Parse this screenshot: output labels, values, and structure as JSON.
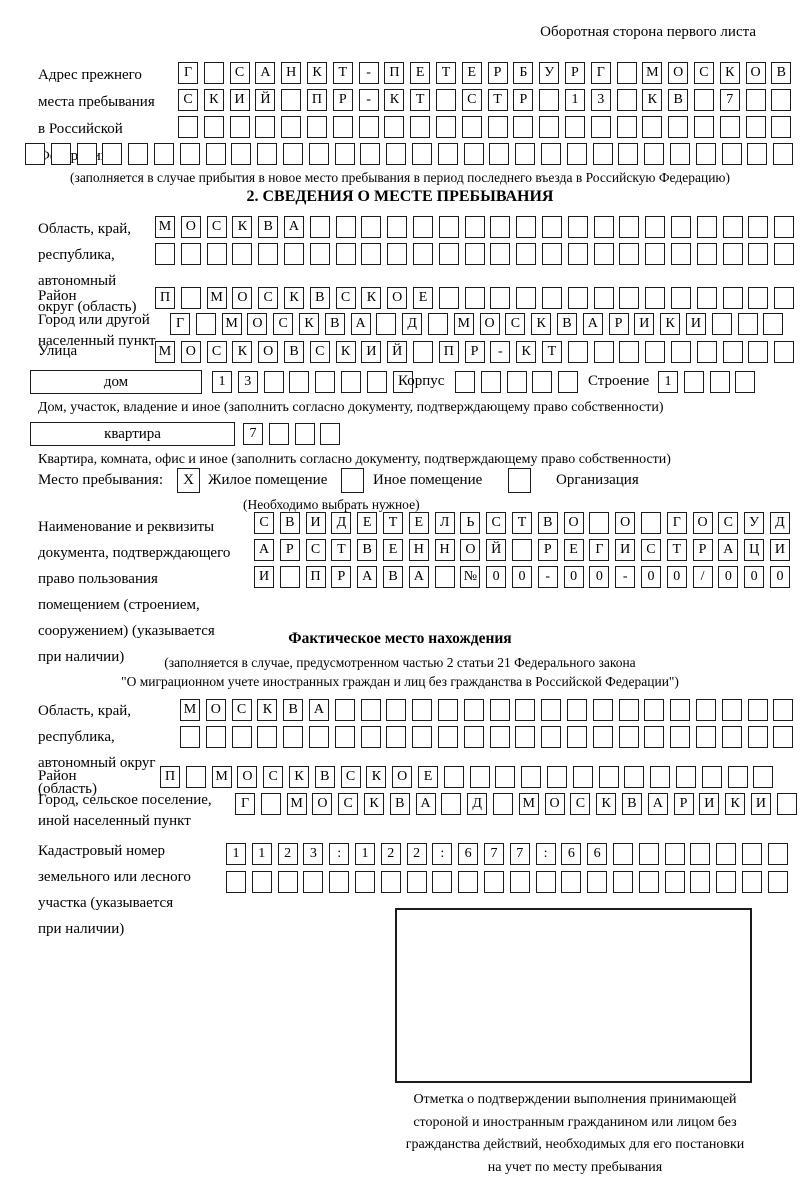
{
  "corner_note": "Оборотная сторона первого листа",
  "prev_address": {
    "label": [
      "Адрес прежнего",
      "места пребывания",
      "в Российской",
      "Федерации"
    ],
    "row1": {
      "cells": "Г САНКТ-ПЕТЕРБУРГ МОСКОВ",
      "len": 24
    },
    "row2": {
      "cells": "СКИЙ ПР-КТ СТР 13 КВ 7",
      "len": 24
    },
    "row3": {
      "cells": "",
      "len": 24
    },
    "row4": {
      "cells": "",
      "len": 30
    },
    "note": "(заполняется в случае прибытия в новое место пребывания в период последнего въезда в Российскую Федерацию)"
  },
  "section2": {
    "title": "2. СВЕДЕНИЯ О МЕСТЕ ПРЕБЫВАНИЯ",
    "region": {
      "label": [
        "Область, край,",
        "республика,",
        "автономный",
        "округ (область)"
      ],
      "row1": {
        "cells": "МОСКВА",
        "len": 25
      },
      "row2": {
        "cells": "",
        "len": 25
      }
    },
    "rayon": {
      "label": "Район",
      "row": {
        "cells": "П МОСКВСКОЕ",
        "len": 25
      }
    },
    "city": {
      "label": [
        "Город или другой",
        "населенный пункт"
      ],
      "row": {
        "cells": "Г МОСКВА Д МОСКВАРИКИ",
        "len": 24
      }
    },
    "street": {
      "label": "Улица",
      "row": {
        "cells": "МОСКОВСКИЙ ПР-КТ",
        "len": 25
      }
    },
    "house": {
      "box_label": "дом",
      "cells": {
        "cells": "13",
        "len": 8
      },
      "korpus_label": "Корпус",
      "korpus_cells": {
        "cells": "",
        "len": 5
      },
      "stroenie_label": "Строение",
      "stroenie_cells": {
        "cells": "1",
        "len": 4
      },
      "caption": "Дом, участок, владение и иное (заполнить согласно документу, подтверждающему право собственности)"
    },
    "apartment": {
      "box_label": "квартира",
      "cells": {
        "cells": "7",
        "len": 4
      },
      "caption": "Квартира, комната, офис и иное (заполнить согласно документу, подтверждающему право собственности)"
    },
    "stay": {
      "label": "Место пребывания:",
      "opt1_mark": "X",
      "opt1": "Жилое помещение",
      "opt2_mark": "",
      "opt2": "Иное помещение",
      "opt3_mark": "",
      "opt3": "Организация",
      "note": "(Необходимо выбрать нужное)"
    },
    "doc": {
      "label": [
        "Наименование и реквизиты",
        "документа, подтверждающего",
        "право пользования",
        "помещением (строением,",
        "сооружением) (указывается",
        "при наличии)"
      ],
      "row1": {
        "cells": "СВИДЕТЕЛЬСТВО О ГОСУД",
        "len": 21
      },
      "row2": {
        "cells": "АРСТВЕННОЙ РЕГИСТРАЦИ",
        "len": 21
      },
      "row3": {
        "cells": "И ПРАВА №00-00-00/000",
        "len": 21
      }
    }
  },
  "fact": {
    "title": "Фактическое место нахождения",
    "note1": "(заполняется в случае, предусмотренном частью 2 статьи 21 Федерального закона",
    "note2": "\"О миграционном учете иностранных граждан и лиц без гражданства в Российской Федерации\")",
    "region": {
      "label": [
        "Область, край,",
        "республика,",
        "автономный округ",
        "(область)"
      ],
      "row1": {
        "cells": "МОСКВА",
        "len": 24
      },
      "row2": {
        "cells": "",
        "len": 24
      }
    },
    "rayon": {
      "label": "Район",
      "row": {
        "cells": "П МОСКВСКОЕ",
        "len": 24
      }
    },
    "city": {
      "label": [
        "Город, сельское поселение,",
        "иной населенный пункт"
      ],
      "row": {
        "cells": "Г МОСКВА Д МОСКВАРИКИ",
        "len": 22
      }
    },
    "kadastr": {
      "label": [
        "Кадастровый номер",
        "земельного или лесного",
        "участка (указывается",
        "при наличии)"
      ],
      "row1": {
        "cells": "1123:122:677:66",
        "len": 22
      },
      "row2": {
        "cells": "",
        "len": 22
      }
    },
    "stamp_caption": [
      "Отметка о подтверждении выполнения принимающей",
      "стороной и иностранным гражданином или лицом без",
      "гражданства действий, необходимых для его постановки",
      "на учет по месту пребывания"
    ]
  }
}
